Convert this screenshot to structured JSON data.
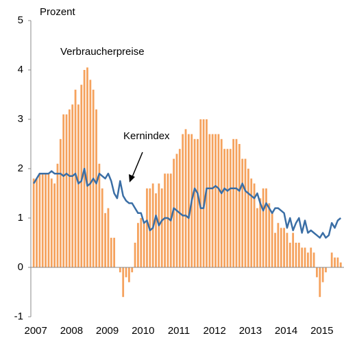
{
  "chart_data": {
    "type": "bar-line",
    "y_label": "Prozent",
    "categories": [
      "2007",
      null,
      null,
      null,
      null,
      null,
      null,
      null,
      null,
      null,
      null,
      null,
      "2008",
      null,
      null,
      null,
      null,
      null,
      null,
      null,
      null,
      null,
      null,
      null,
      "2009",
      null,
      null,
      null,
      null,
      null,
      null,
      null,
      null,
      null,
      null,
      null,
      "2010",
      null,
      null,
      null,
      null,
      null,
      null,
      null,
      null,
      null,
      null,
      null,
      "2011",
      null,
      null,
      null,
      null,
      null,
      null,
      null,
      null,
      null,
      null,
      null,
      "2012",
      null,
      null,
      null,
      null,
      null,
      null,
      null,
      null,
      null,
      null,
      null,
      "2013",
      null,
      null,
      null,
      null,
      null,
      null,
      null,
      null,
      null,
      null,
      null,
      "2014",
      null,
      null,
      null,
      null,
      null,
      null,
      null,
      null,
      null,
      null,
      null,
      "2015",
      null,
      null,
      null,
      null,
      null,
      null,
      null
    ],
    "series": [
      {
        "name": "Verbraucherpreise",
        "kind": "bar",
        "color": "#f5a25d",
        "values": [
          1.8,
          1.8,
          1.9,
          1.9,
          1.9,
          1.9,
          1.8,
          1.7,
          2.1,
          2.6,
          3.1,
          3.1,
          3.2,
          3.3,
          3.6,
          3.3,
          3.7,
          4.0,
          4.05,
          3.8,
          3.6,
          3.2,
          2.1,
          1.6,
          1.1,
          1.2,
          0.6,
          0.6,
          0.0,
          -0.1,
          -0.6,
          -0.2,
          -0.3,
          -0.1,
          0.5,
          0.9,
          1.0,
          0.9,
          1.6,
          1.6,
          1.7,
          1.5,
          1.7,
          1.6,
          1.9,
          1.9,
          1.9,
          2.2,
          2.3,
          2.4,
          2.7,
          2.8,
          2.7,
          2.7,
          2.6,
          2.6,
          3.0,
          3.0,
          3.0,
          2.7,
          2.7,
          2.7,
          2.7,
          2.6,
          2.4,
          2.4,
          2.4,
          2.6,
          2.6,
          2.5,
          2.2,
          2.2,
          2.0,
          1.8,
          1.7,
          1.2,
          1.4,
          1.6,
          1.6,
          1.3,
          1.1,
          0.7,
          0.9,
          0.8,
          0.8,
          0.7,
          0.5,
          0.7,
          0.5,
          0.5,
          0.4,
          0.4,
          0.3,
          0.4,
          0.3,
          -0.2,
          -0.6,
          -0.3,
          -0.1,
          0.0,
          0.3,
          0.2,
          0.2,
          0.1
        ]
      },
      {
        "name": "Kernindex",
        "kind": "line",
        "color": "#3a6ea5",
        "values": [
          1.7,
          1.8,
          1.9,
          1.9,
          1.9,
          1.9,
          1.95,
          1.9,
          1.9,
          1.9,
          1.85,
          1.9,
          1.85,
          1.85,
          1.9,
          1.7,
          1.75,
          2.0,
          1.65,
          1.7,
          1.8,
          1.7,
          1.9,
          1.85,
          1.8,
          1.9,
          1.75,
          1.5,
          1.4,
          1.75,
          1.45,
          1.35,
          1.3,
          1.3,
          1.2,
          1.1,
          1.1,
          0.9,
          0.95,
          0.75,
          0.8,
          1.05,
          0.85,
          0.95,
          1.0,
          1.0,
          0.95,
          1.2,
          1.15,
          1.1,
          1.05,
          1.05,
          1.0,
          1.35,
          1.6,
          1.5,
          1.2,
          1.2,
          1.6,
          1.6,
          1.6,
          1.65,
          1.6,
          1.5,
          1.6,
          1.55,
          1.6,
          1.6,
          1.6,
          1.55,
          1.7,
          1.55,
          1.5,
          1.45,
          1.4,
          1.5,
          1.3,
          1.15,
          1.3,
          1.2,
          1.1,
          1.2,
          1.2,
          1.15,
          1.1,
          0.8,
          1.0,
          0.75,
          0.9,
          1.0,
          0.7,
          0.95,
          0.7,
          0.75,
          0.7,
          0.65,
          0.6,
          0.7,
          0.6,
          0.65,
          0.9,
          0.8,
          0.95,
          1.0
        ]
      }
    ],
    "ylim": [
      -1,
      5
    ],
    "yticks": [
      -1,
      0,
      1,
      2,
      3,
      4,
      5
    ]
  }
}
